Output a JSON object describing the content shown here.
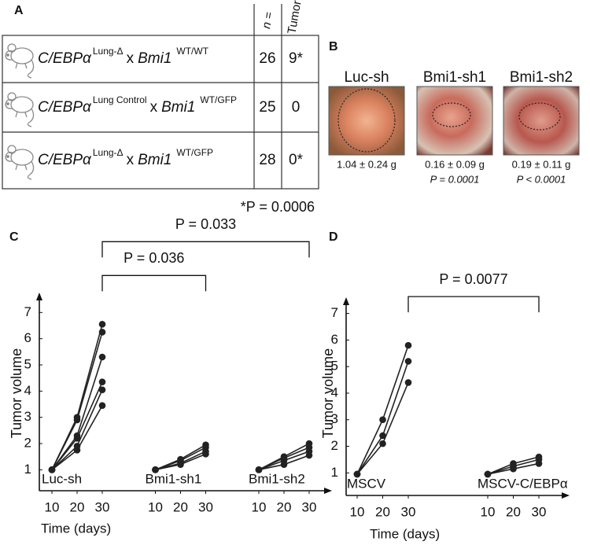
{
  "panels": [
    "A",
    "B",
    "C",
    "D"
  ],
  "table": {
    "headers": [
      "n =",
      "Tumor"
    ],
    "rows": [
      {
        "gene1": "C/EBPα",
        "sup1": "Lung-Δ",
        "cross": "x",
        "gene2": "Bmi1",
        "sup2": "WT/WT",
        "n": 26,
        "tumor": "9*"
      },
      {
        "gene1": "C/EBPα",
        "sup1": "Lung Control",
        "cross": "x",
        "gene2": "Bmi1",
        "sup2": "WT/GFP",
        "n": 25,
        "tumor": 0
      },
      {
        "gene1": "C/EBPα",
        "sup1": "Lung-Δ",
        "cross": "x",
        "gene2": "Bmi1",
        "sup2": "WT/GFP",
        "n": 28,
        "tumor": "0*"
      }
    ],
    "footnote": "*P = 0.0006"
  },
  "images": [
    {
      "label": "Luc-sh",
      "weight": "1.04 ± 0.24 g"
    },
    {
      "label": "Bmi1-sh1",
      "weight": "0.16 ± 0.09 g",
      "p": "P = 0.0001"
    },
    {
      "label": "Bmi1-sh2",
      "weight": "0.19 ± 0.11 g",
      "p": "P < 0.0001"
    }
  ],
  "chart_data": [
    {
      "type": "line",
      "color": "#222222",
      "x_label": "Time (days)",
      "y_label": "Tumor volume",
      "x": [
        10,
        20,
        30
      ],
      "ylim": [
        0.2,
        7.7
      ],
      "yticks": [
        1,
        2,
        3,
        4,
        5,
        6,
        7
      ],
      "groups": [
        {
          "name": "Luc-sh",
          "lines": [
            [
              1,
              3.0,
              6.55
            ],
            [
              1,
              2.9,
              6.25
            ],
            [
              1,
              2.3,
              5.3
            ],
            [
              1,
              2.2,
              4.35
            ],
            [
              1,
              1.9,
              4.05
            ],
            [
              1,
              1.75,
              3.45
            ]
          ]
        },
        {
          "name": "Bmi1-sh1",
          "lines": [
            [
              1,
              1.4,
              1.95
            ],
            [
              1,
              1.35,
              1.85
            ],
            [
              1,
              1.25,
              1.7
            ],
            [
              1,
              1.2,
              1.6
            ]
          ]
        },
        {
          "name": "Bmi1-sh2",
          "lines": [
            [
              1,
              1.5,
              2.0
            ],
            [
              1,
              1.45,
              1.85
            ],
            [
              1,
              1.35,
              1.7
            ],
            [
              1,
              1.2,
              1.55
            ]
          ]
        }
      ],
      "comparisons": [
        "P = 0.036",
        "P = 0.033"
      ]
    },
    {
      "type": "line",
      "color": "#222222",
      "x_label": "Time (days)",
      "y_label": "Tumor volume",
      "x": [
        10,
        20,
        30
      ],
      "ylim": [
        0.15,
        7.55
      ],
      "yticks": [
        1,
        2,
        3,
        4,
        5,
        6,
        7
      ],
      "groups": [
        {
          "name": "MSCV",
          "lines": [
            [
              0.95,
              3.0,
              5.8
            ],
            [
              0.95,
              2.4,
              5.2
            ],
            [
              0.95,
              2.1,
              4.4
            ]
          ]
        },
        {
          "name": "MSCV-C/EBPα",
          "lines": [
            [
              0.95,
              1.35,
              1.6
            ],
            [
              0.95,
              1.25,
              1.5
            ],
            [
              0.95,
              1.15,
              1.35
            ]
          ]
        }
      ],
      "comparisons": [
        "P = 0.0077"
      ]
    }
  ]
}
